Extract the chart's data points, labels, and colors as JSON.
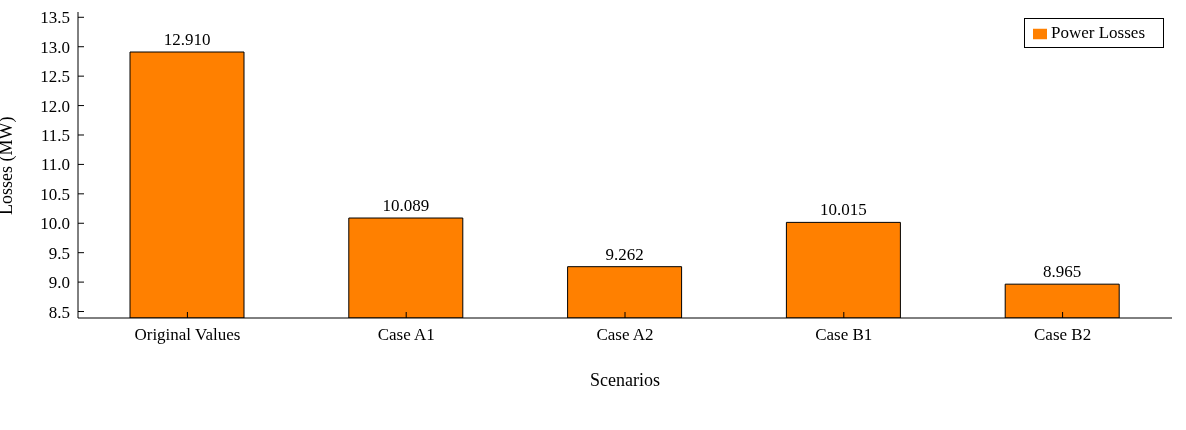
{
  "chart_data": {
    "type": "bar",
    "xlabel": "Scenarios",
    "ylabel": "Losses (MW)",
    "categories": [
      "Original Values",
      "Case A1",
      "Case A2",
      "Case B1",
      "Case B2"
    ],
    "series": [
      {
        "name": "Power Losses",
        "color": "#ff8000",
        "values": [
          12.91,
          10.089,
          9.262,
          10.015,
          8.965
        ],
        "value_labels": [
          "12.910",
          "10.089",
          "9.262",
          "10.015",
          "8.965"
        ]
      }
    ],
    "ylim": [
      8.39,
      13.59
    ],
    "yticks": [
      {
        "value": 8.5,
        "label": "8.5"
      },
      {
        "value": 9,
        "label": "9.0"
      },
      {
        "value": 9.5,
        "label": "9.5"
      },
      {
        "value": 10,
        "label": "10.0"
      },
      {
        "value": 10.5,
        "label": "10.5"
      },
      {
        "value": 11,
        "label": "11.0"
      },
      {
        "value": 11.5,
        "label": "11.5"
      },
      {
        "value": 12,
        "label": "12.0"
      },
      {
        "value": 12.5,
        "label": "12.5"
      },
      {
        "value": 13,
        "label": "13.0"
      },
      {
        "value": 13.5,
        "label": "13.5"
      }
    ],
    "legend": "top right"
  }
}
